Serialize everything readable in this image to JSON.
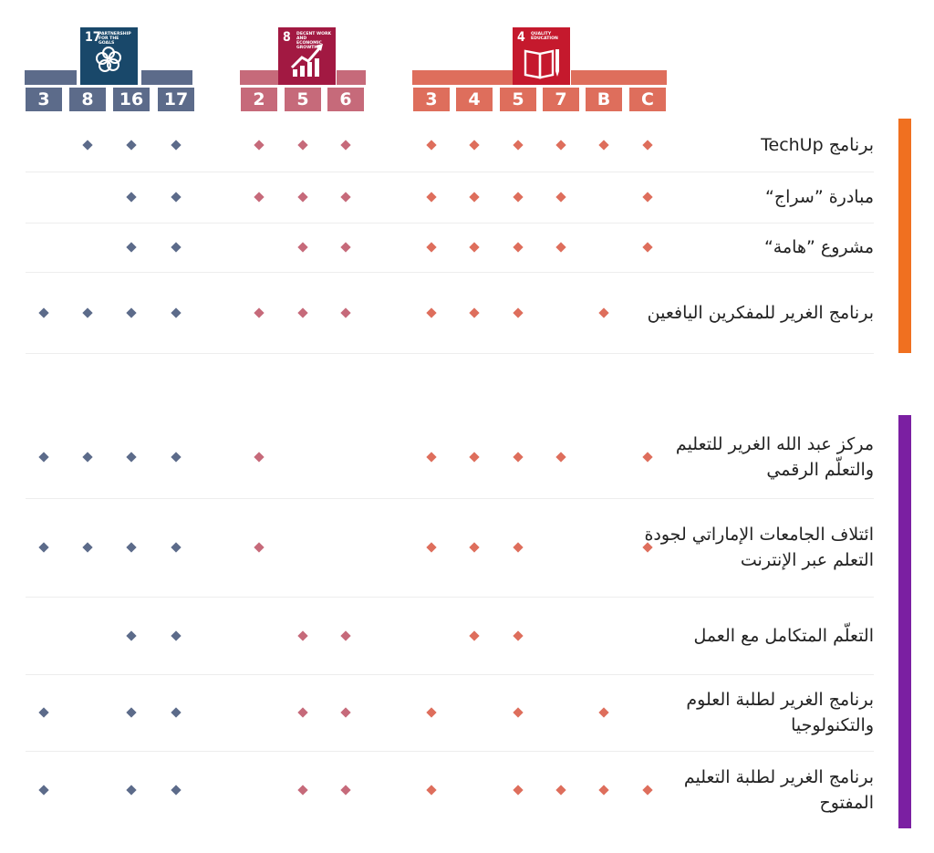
{
  "colors": {
    "sdg17": "#19486a",
    "sdg17_bar": "#5c6b8a",
    "sdg8": "#a21942",
    "sdg8_bar": "#c66a7a",
    "sdg4": "#c5192d",
    "sdg4_bar": "#de6e5c",
    "bar_group1": "#f07020",
    "bar_group2": "#7b1fa2"
  },
  "goals": [
    {
      "key": "sdg17",
      "icon_number": "17",
      "icon_text": "PARTNERSHIP\nFOR THE GOALS",
      "icon_name": "partnership-rings-icon",
      "targets": [
        "3",
        "8",
        "16",
        "17"
      ]
    },
    {
      "key": "sdg8",
      "icon_number": "8",
      "icon_text": "DECENT WORK AND\nECONOMIC GROWTH",
      "icon_name": "growth-chart-icon",
      "targets": [
        "2",
        "5",
        "6"
      ]
    },
    {
      "key": "sdg4",
      "icon_number": "4",
      "icon_text": "QUALITY\nEDUCATION",
      "icon_name": "book-pencil-icon",
      "targets": [
        "3",
        "4",
        "5",
        "7",
        "B",
        "C"
      ]
    }
  ],
  "groups": [
    {
      "rows": [
        {
          "label": "برنامج TechUp",
          "marks": {
            "sdg17": [
              "8",
              "16",
              "17"
            ],
            "sdg8": [
              "2",
              "5",
              "6"
            ],
            "sdg4": [
              "3",
              "4",
              "5",
              "7",
              "B",
              "C"
            ]
          }
        },
        {
          "label": "مبادرة ”سراج“",
          "marks": {
            "sdg17": [
              "16",
              "17"
            ],
            "sdg8": [
              "2",
              "5",
              "6"
            ],
            "sdg4": [
              "3",
              "4",
              "5",
              "7",
              "C"
            ]
          }
        },
        {
          "label": "مشروع ”هامة“",
          "marks": {
            "sdg17": [
              "16",
              "17"
            ],
            "sdg8": [
              "5",
              "6"
            ],
            "sdg4": [
              "3",
              "4",
              "5",
              "7",
              "C"
            ]
          }
        },
        {
          "label": "برنامج الغرير للمفكرين اليافعين",
          "marks": {
            "sdg17": [
              "3",
              "8",
              "16",
              "17"
            ],
            "sdg8": [
              "2",
              "5",
              "6"
            ],
            "sdg4": [
              "3",
              "4",
              "5",
              "B"
            ]
          }
        }
      ]
    },
    {
      "rows": [
        {
          "label": "مركز عبد الله الغرير للتعليم والتعلّم الرقمي",
          "marks": {
            "sdg17": [
              "3",
              "8",
              "16",
              "17"
            ],
            "sdg8": [
              "2"
            ],
            "sdg4": [
              "3",
              "4",
              "5",
              "7",
              "C"
            ]
          }
        },
        {
          "label": "ائتلاف الجامعات الإماراتي لجودة التعلم عبر الإنترنت",
          "marks": {
            "sdg17": [
              "3",
              "8",
              "16",
              "17"
            ],
            "sdg8": [
              "2"
            ],
            "sdg4": [
              "3",
              "4",
              "5",
              "C"
            ]
          }
        },
        {
          "label": "التعلّم المتكامل مع العمل",
          "marks": {
            "sdg17": [
              "16",
              "17"
            ],
            "sdg8": [
              "5",
              "6"
            ],
            "sdg4": [
              "4",
              "5"
            ]
          }
        },
        {
          "label": "برنامج الغرير لطلبة العلوم والتكنولوجيا",
          "marks": {
            "sdg17": [
              "3",
              "16",
              "17"
            ],
            "sdg8": [
              "5",
              "6"
            ],
            "sdg4": [
              "3",
              "5",
              "B"
            ]
          }
        },
        {
          "label": "برنامج الغرير لطلبة التعليم المفتوح",
          "marks": {
            "sdg17": [
              "3",
              "16",
              "17"
            ],
            "sdg8": [
              "5",
              "6"
            ],
            "sdg4": [
              "3",
              "5",
              "7",
              "B",
              "C"
            ]
          }
        }
      ]
    }
  ]
}
